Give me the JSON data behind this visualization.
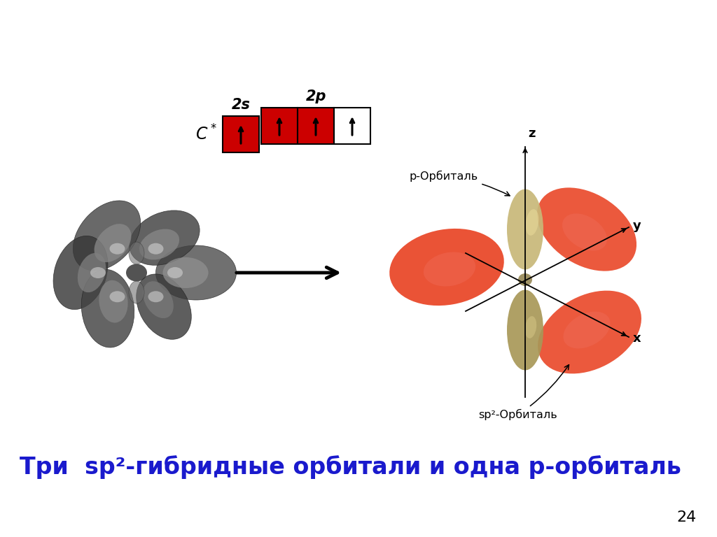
{
  "title_text": "Три  sp²-гибридные орбитали и одна р-орбиталь",
  "title_color": "#1a1acd",
  "title_fontsize": 24,
  "page_number": "24",
  "bg_color": "#ffffff",
  "label_2s": "2s",
  "label_2p": "2p",
  "box_red": "#cc0000",
  "box_white": "#ffffff",
  "orbital_red": "#e84020",
  "orbital_gold": "#b8a868",
  "label_p": "р-Орбиталь",
  "label_sp2": "sp²-Орбиталь"
}
